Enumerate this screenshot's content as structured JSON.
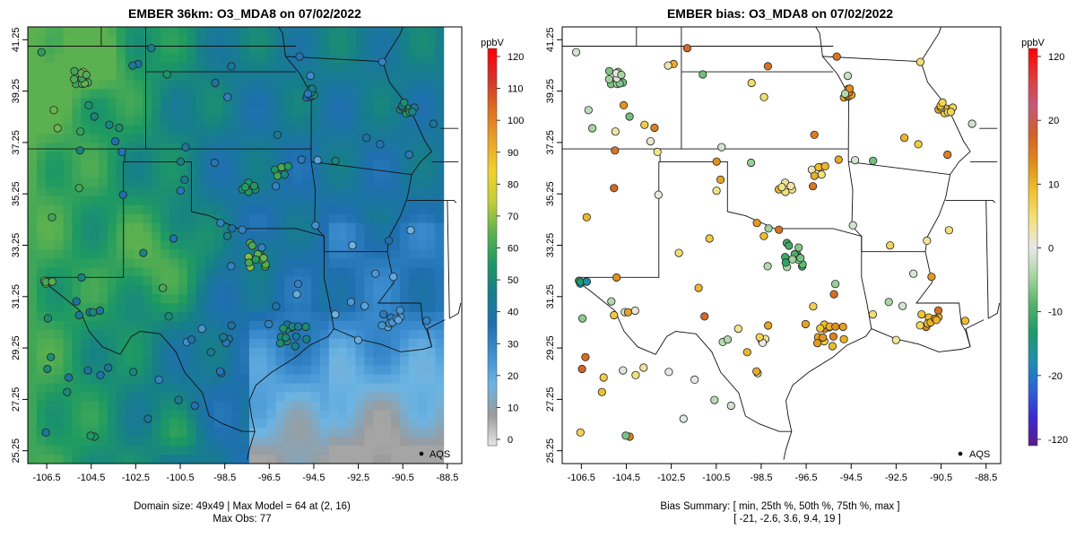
{
  "colors": {
    "panel_bg": "#ffffff",
    "model_scale": [
      "#e6e6e6",
      "#9b9b9b",
      "#6db4e2",
      "#3d8fd1",
      "#1f6fb0",
      "#167e8a",
      "#1e9a62",
      "#5fb24e",
      "#c3cf3a",
      "#f0d22e",
      "#e9a325",
      "#de6f1e",
      "#d2332c",
      "#ff0000"
    ],
    "bias_scale": [
      "#5a1a8a",
      "#3b2bd0",
      "#2b63d8",
      "#1e8fb2",
      "#1e9a6a",
      "#56b36a",
      "#a7d7a0",
      "#e8e8e8",
      "#f2e27a",
      "#efc12c",
      "#e08a1a",
      "#d0602a",
      "#c4597a",
      "#e03a3a",
      "#ff0000"
    ]
  },
  "left_panel": {
    "title": "EMBER 36km: O3_MDA8 on 07/02/2022",
    "footer_line1": "Domain size: 49x49 | Max Model = 64 at (2, 16)",
    "footer_line2": "Max Obs: 77",
    "legend_label": "AQS",
    "colorbar_unit": "ppbV",
    "colorbar_ticks": [
      "0",
      "10",
      "20",
      "30",
      "40",
      "50",
      "60",
      "70",
      "80",
      "90",
      "100",
      "110",
      "120"
    ]
  },
  "right_panel": {
    "title": "EMBER bias: O3_MDA8 on 07/02/2022",
    "footer_line1": "Bias Summary: [ min, 25th %, 50th %, 75th %, max ]",
    "footer_line2": "[ -21,   -2.6,   3.6,   9.4,   19 ]",
    "legend_label": "AQS",
    "colorbar_unit": "ppbV",
    "colorbar_ticks": [
      "-120",
      "-20",
      "-10",
      "0",
      "10",
      "20",
      "120"
    ]
  },
  "axes": {
    "x_ticks": [
      "-106.5",
      "-104.5",
      "-102.5",
      "-100.5",
      "-98.5",
      "-96.5",
      "-94.5",
      "-92.5",
      "-90.5",
      "-88.5"
    ],
    "y_ticks": [
      "25.25",
      "27.25",
      "29.25",
      "31.25",
      "33.25",
      "35.25",
      "37.25",
      "39.25",
      "41.25"
    ],
    "x_range": [
      -107.35,
      -87.85
    ],
    "y_range": [
      24.75,
      41.75
    ]
  },
  "chart_data": [
    {
      "type": "heatmap",
      "title": "EMBER 36km: O3_MDA8 on 07/02/2022",
      "xlabel": "",
      "ylabel": "",
      "colorbar_label": "ppbV",
      "colorbar_range": [
        0,
        120
      ],
      "grid_domain": "49x49",
      "max_model": 64,
      "max_obs": 77,
      "overlay": "AQS monitor observations (filled circles colored by observed O3_MDA8)"
    },
    {
      "type": "scatter",
      "title": "EMBER bias: O3_MDA8 on 07/02/2022",
      "xlabel": "",
      "ylabel": "",
      "colorbar_label": "ppbV",
      "colorbar_range": [
        -120,
        120
      ],
      "bias_summary": {
        "min": -21,
        "p25": -2.6,
        "p50": 3.6,
        "p75": 9.4,
        "max": 19
      },
      "overlay": "AQS monitor bias (model minus obs) as colored circles"
    }
  ]
}
